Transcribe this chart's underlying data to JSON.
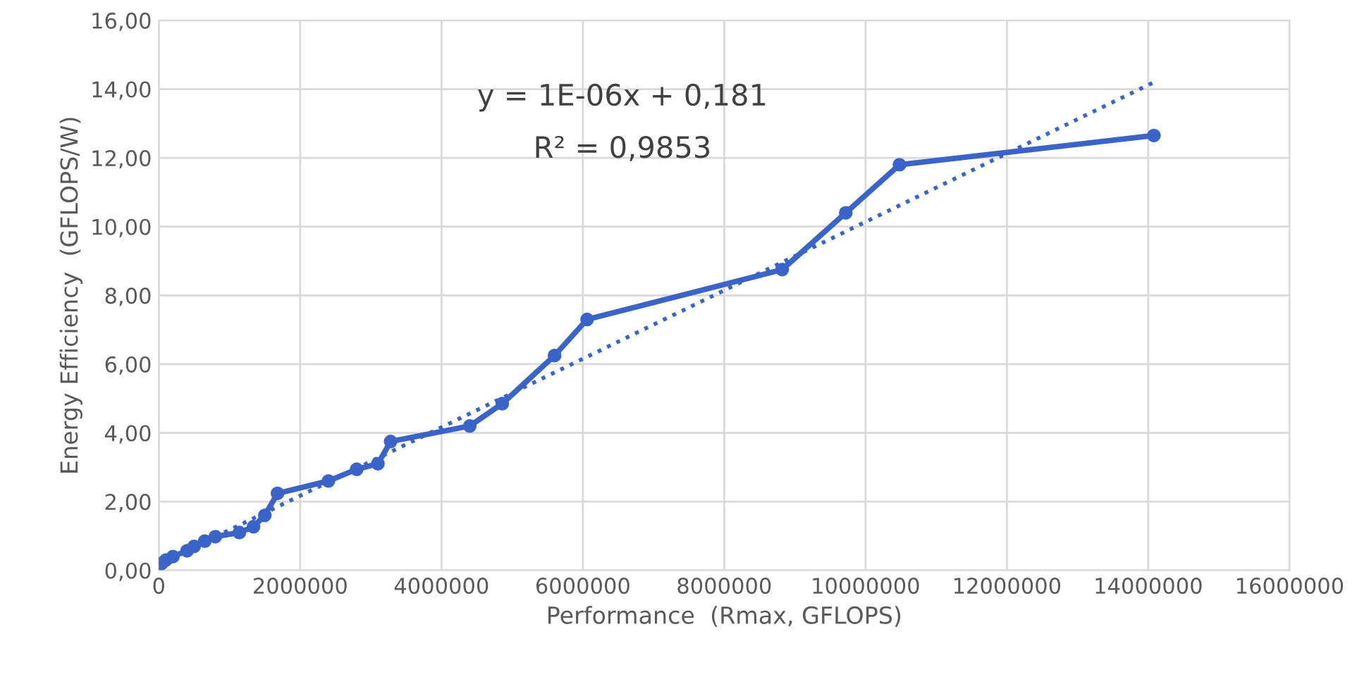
{
  "chart_data": {
    "type": "line",
    "xlabel": "Performance  (Rmax, GFLOPS)",
    "ylabel": "Energy Efficiency  (GFLOPS/W)",
    "annotations": [
      "y = 1E-06x + 0,181",
      "R² = 0,9853"
    ],
    "xlim": [
      0,
      16000000
    ],
    "xticks": [
      0,
      2000000,
      4000000,
      6000000,
      8000000,
      10000000,
      12000000,
      14000000,
      16000000
    ],
    "ylim": [
      0,
      16
    ],
    "yticks": [
      {
        "value": 0,
        "label": "0,00"
      },
      {
        "value": 2,
        "label": "2,00"
      },
      {
        "value": 4,
        "label": "4,00"
      },
      {
        "value": 6,
        "label": "6,00"
      },
      {
        "value": 8,
        "label": "8,00"
      },
      {
        "value": 10,
        "label": "10,00"
      },
      {
        "value": 12,
        "label": "12,00"
      },
      {
        "value": 14,
        "label": "14,00"
      },
      {
        "value": 16,
        "label": "16,00"
      }
    ],
    "grid": true,
    "legend": false,
    "series": [
      {
        "color": "#3a64c8",
        "marker": "circle",
        "line_style": "solid",
        "x": [
          40000,
          100000,
          200000,
          400000,
          500000,
          650000,
          800000,
          1140000,
          1340000,
          1500000,
          1680000,
          2400000,
          2800000,
          3100000,
          3280000,
          4400000,
          4860000,
          5600000,
          6060000,
          8820000,
          9720000,
          10480000,
          14080000
        ],
        "values": [
          0.2,
          0.3,
          0.4,
          0.57,
          0.7,
          0.85,
          0.98,
          1.1,
          1.27,
          1.6,
          2.24,
          2.6,
          2.94,
          3.1,
          3.75,
          4.2,
          4.85,
          6.25,
          7.3,
          8.75,
          10.4,
          11.8,
          12.65
        ]
      },
      {
        "color": "#3a64c8",
        "marker": "none",
        "line_style": "dotted",
        "x": [
          0,
          14080000
        ],
        "values": [
          0.18,
          14.2
        ]
      }
    ]
  }
}
